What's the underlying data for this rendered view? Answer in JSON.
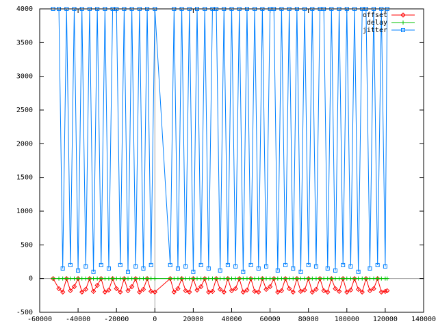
{
  "chart_data": {
    "type": "line",
    "x": [
      -53000,
      -50000,
      -48000,
      -46000,
      -44000,
      -42000,
      -40000,
      -38000,
      -36000,
      -34000,
      -32000,
      -30000,
      -28000,
      -26000,
      -24000,
      -22000,
      -20000,
      -18000,
      -16000,
      -14000,
      -12000,
      -10000,
      -8000,
      -6000,
      -4000,
      -2000,
      0,
      8000,
      10000,
      12000,
      14000,
      16000,
      18000,
      20000,
      22000,
      24000,
      26000,
      28000,
      30000,
      32000,
      34000,
      36000,
      38000,
      40000,
      42000,
      44000,
      46000,
      48000,
      50000,
      52000,
      54000,
      56000,
      58000,
      60000,
      62000,
      64000,
      66000,
      68000,
      70000,
      72000,
      74000,
      76000,
      78000,
      80000,
      82000,
      84000,
      86000,
      88000,
      90000,
      92000,
      94000,
      96000,
      98000,
      100000,
      102000,
      104000,
      106000,
      108000,
      110000,
      112000,
      114000,
      116000,
      118000,
      120000,
      121000
    ],
    "series": [
      {
        "name": "offset",
        "color": "#ff0000",
        "marker": "diamond",
        "values": [
          0,
          -150,
          -200,
          0,
          -180,
          -120,
          0,
          -200,
          -160,
          0,
          -190,
          -100,
          0,
          -200,
          -170,
          0,
          -150,
          -200,
          0,
          -180,
          -120,
          0,
          -200,
          -160,
          0,
          -190,
          -200,
          0,
          -200,
          -150,
          0,
          -180,
          -200,
          0,
          -170,
          -120,
          0,
          -200,
          -190,
          0,
          -160,
          -200,
          0,
          -180,
          -150,
          0,
          -200,
          -170,
          0,
          -190,
          -200,
          0,
          -160,
          -120,
          0,
          -200,
          -180,
          0,
          -150,
          -200,
          0,
          -190,
          -170,
          0,
          -200,
          -160,
          0,
          -180,
          -200,
          0,
          -150,
          -190,
          0,
          -200,
          -170,
          0,
          -160,
          -200,
          0,
          -180,
          -150,
          0,
          -200,
          -190,
          -180
        ]
      },
      {
        "name": "delay",
        "color": "#00c000",
        "marker": "plus",
        "values": [
          0,
          0,
          0,
          0,
          0,
          0,
          0,
          0,
          0,
          0,
          0,
          0,
          0,
          0,
          0,
          0,
          0,
          0,
          0,
          0,
          0,
          0,
          0,
          0,
          0,
          0,
          0,
          0,
          0,
          0,
          0,
          0,
          0,
          0,
          0,
          0,
          0,
          0,
          0,
          0,
          0,
          0,
          0,
          0,
          0,
          0,
          0,
          0,
          0,
          0,
          0,
          0,
          0,
          0,
          0,
          0,
          0,
          0,
          0,
          0,
          0,
          0,
          0,
          0,
          0,
          0,
          0,
          0,
          0,
          0,
          0,
          0,
          0,
          0,
          0,
          0,
          0,
          0,
          0,
          0,
          0,
          0,
          0,
          0,
          0
        ]
      },
      {
        "name": "jitter",
        "color": "#0080ff",
        "marker": "square",
        "values": [
          4000,
          4000,
          150,
          4000,
          200,
          4000,
          120,
          4000,
          180,
          4000,
          100,
          4000,
          200,
          4000,
          150,
          4000,
          4000,
          200,
          4000,
          100,
          4000,
          180,
          4000,
          150,
          4000,
          200,
          4000,
          200,
          4000,
          150,
          4000,
          180,
          4000,
          100,
          4000,
          200,
          4000,
          150,
          4000,
          4000,
          120,
          4000,
          200,
          4000,
          180,
          4000,
          100,
          4000,
          200,
          4000,
          150,
          4000,
          180,
          4000,
          4000,
          120,
          4000,
          200,
          4000,
          150,
          4000,
          100,
          4000,
          200,
          4000,
          180,
          4000,
          4000,
          150,
          4000,
          120,
          4000,
          200,
          4000,
          180,
          4000,
          100,
          4000,
          4000,
          150,
          4000,
          200,
          4000,
          180,
          4000
        ]
      }
    ],
    "xlim": [
      -60000,
      140000
    ],
    "xticks": [
      -60000,
      -40000,
      -20000,
      0,
      20000,
      40000,
      60000,
      80000,
      100000,
      120000,
      140000
    ],
    "ylim": [
      -500,
      4000
    ],
    "yticks": [
      -500,
      0,
      500,
      1000,
      1500,
      2000,
      2500,
      3000,
      3500,
      4000
    ],
    "legend": "upper right"
  }
}
